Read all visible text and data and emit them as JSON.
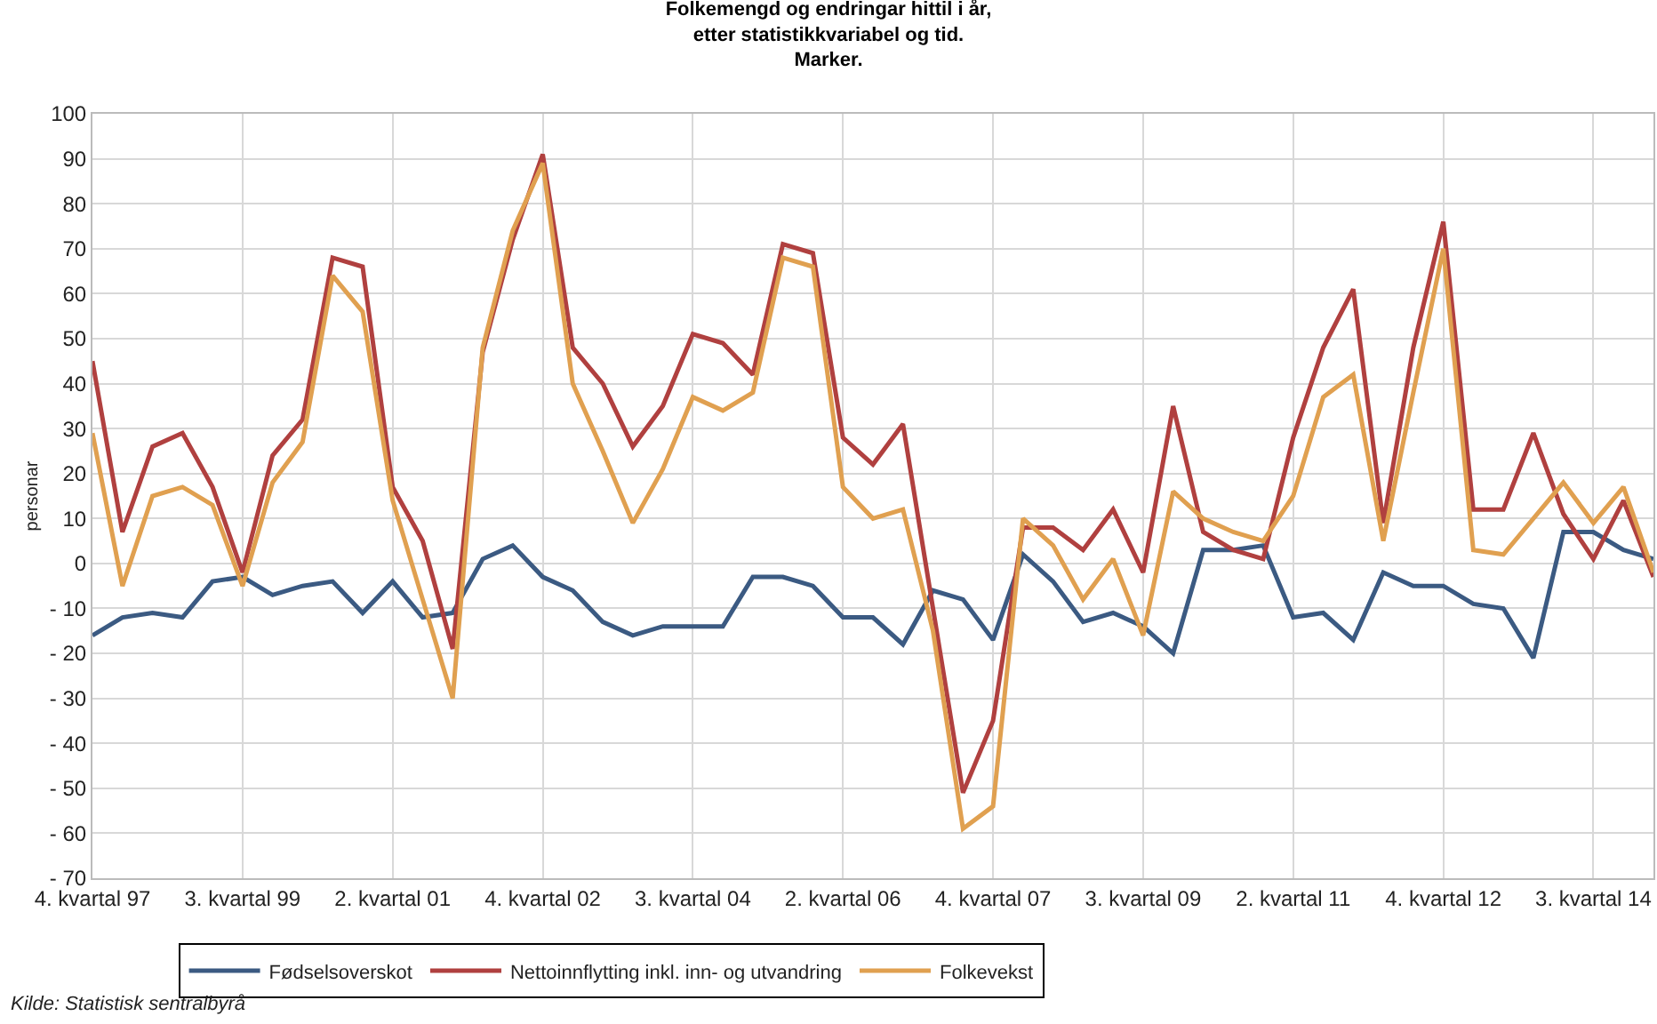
{
  "chart_data": {
    "type": "line",
    "title": "Folkemengd og endringar hittil i år,\netter statistikkvariabel og tid.\nMarker.",
    "ylabel": "personar",
    "categories": [
      "4. kvartal 97",
      null,
      null,
      null,
      null,
      "3. kvartal 99",
      null,
      null,
      null,
      null,
      "2. kvartal 01",
      null,
      null,
      null,
      null,
      "4. kvartal 02",
      null,
      null,
      null,
      null,
      "3. kvartal 04",
      null,
      null,
      null,
      null,
      "2. kvartal 06",
      null,
      null,
      null,
      null,
      "4. kvartal 07",
      null,
      null,
      null,
      null,
      "3. kvartal 09",
      null,
      null,
      null,
      null,
      "2. kvartal 11",
      null,
      null,
      null,
      null,
      "4. kvartal 12",
      null,
      null,
      null,
      null,
      "3. kvartal 14",
      null,
      null
    ],
    "series": [
      {
        "name": "Fødselsoverskot",
        "color": "#3b5a82",
        "values": [
          -16,
          -12,
          -11,
          -12,
          -4,
          -3,
          -7,
          -5,
          -4,
          -11,
          -4,
          -12,
          -11,
          1,
          4,
          -3,
          -6,
          -13,
          -16,
          -14,
          -14,
          -14,
          -3,
          -3,
          -5,
          -12,
          -12,
          -18,
          -6,
          -8,
          -17,
          2,
          -4,
          -13,
          -11,
          -14,
          -20,
          3,
          3,
          4,
          -12,
          -11,
          -17,
          -2,
          -5,
          -5,
          -9,
          -10,
          -21,
          7,
          7,
          3,
          1
        ]
      },
      {
        "name": "Nettoinnflytting inkl. inn- og utvandring",
        "color": "#b0403f",
        "values": [
          45,
          7,
          26,
          29,
          17,
          -2,
          24,
          32,
          68,
          66,
          17,
          5,
          -19,
          47,
          72,
          91,
          48,
          40,
          26,
          35,
          51,
          49,
          42,
          71,
          69,
          28,
          22,
          31,
          -10,
          -51,
          -35,
          8,
          8,
          3,
          12,
          -2,
          35,
          7,
          3,
          1,
          28,
          48,
          61,
          9,
          48,
          76,
          12,
          12,
          29,
          11,
          1,
          14,
          -3
        ]
      },
      {
        "name": "Folkevekst",
        "color": "#e0a050",
        "values": [
          29,
          -5,
          15,
          17,
          13,
          -5,
          18,
          27,
          64,
          56,
          14,
          -8,
          -30,
          48,
          74,
          89,
          40,
          25,
          9,
          21,
          37,
          34,
          38,
          68,
          66,
          17,
          10,
          12,
          -15,
          -59,
          -54,
          10,
          4,
          -8,
          1,
          -16,
          16,
          10,
          7,
          5,
          15,
          37,
          42,
          5,
          38,
          70,
          3,
          2,
          10,
          18,
          9,
          17,
          -2
        ]
      }
    ],
    "ylim": [
      -70,
      100
    ],
    "yticks": [
      {
        "value": -70,
        "label": "- 70"
      },
      {
        "value": -60,
        "label": "- 60"
      },
      {
        "value": -50,
        "label": "- 50"
      },
      {
        "value": -40,
        "label": "- 40"
      },
      {
        "value": -30,
        "label": "- 30"
      },
      {
        "value": -20,
        "label": "- 20"
      },
      {
        "value": -10,
        "label": "- 10"
      },
      0,
      10,
      20,
      30,
      40,
      50,
      60,
      70,
      80,
      90,
      100
    ],
    "grid": true,
    "legend": "bottom",
    "line_style": "solid",
    "annotations": [
      "Kilde: Statistisk sentralbyrå"
    ]
  }
}
